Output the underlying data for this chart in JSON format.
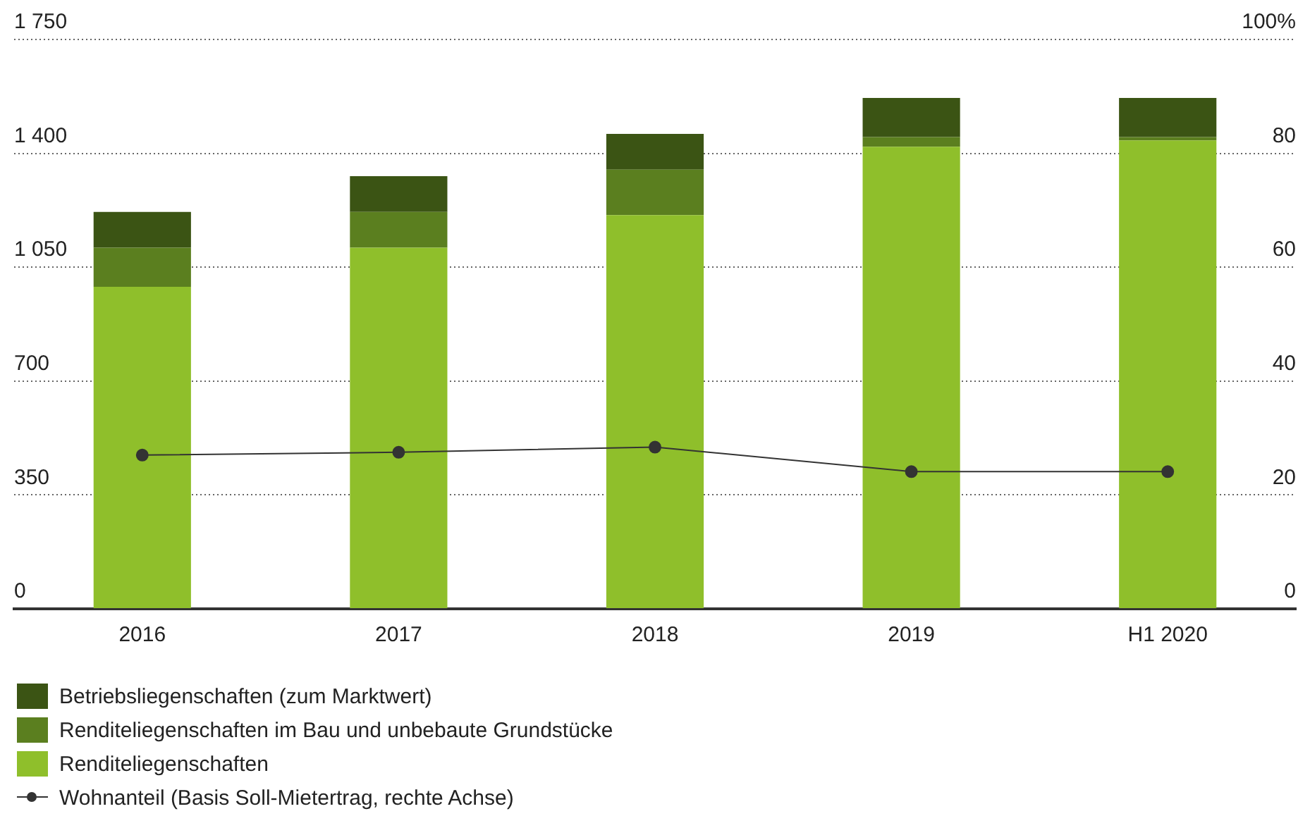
{
  "chart_data": {
    "type": "bar",
    "stacked": true,
    "categories": [
      "2016",
      "2017",
      "2018",
      "2019",
      "H1 2020"
    ],
    "series": [
      {
        "name": "Renditeliegenschaften",
        "color": "#8fbf2b",
        "values": [
          990,
          1110,
          1210,
          1420,
          1440
        ]
      },
      {
        "name": "Renditeliegenschaften im Bau und unbebaute Grundstücke",
        "color": "#5b7f1f",
        "values": [
          120,
          110,
          140,
          30,
          10
        ]
      },
      {
        "name": "Betriebsliegenschaften (zum Marktwert)",
        "color": "#3b5414",
        "values": [
          110,
          110,
          110,
          120,
          120
        ]
      },
      {
        "name": "Wohnanteil (Basis Soll-Mietertrag, rechte Achse)",
        "type": "line",
        "axis": "y2",
        "color": "#333333",
        "marker": "circle",
        "values": [
          27.0,
          27.5,
          28.4,
          24.1,
          24.1
        ]
      }
    ],
    "ylim": [
      0,
      1750
    ],
    "yticks": [
      0,
      350,
      700,
      {
        "value": 1050,
        "label": "1 050"
      },
      {
        "value": 1400,
        "label": "1 400"
      },
      {
        "value": 1750,
        "label": "1 750"
      }
    ],
    "y2lim": [
      0,
      100
    ],
    "y2ticks": [
      0,
      20,
      40,
      60,
      80,
      {
        "value": 100,
        "label": "100%"
      }
    ],
    "grid": "y",
    "legend": "bottom"
  }
}
